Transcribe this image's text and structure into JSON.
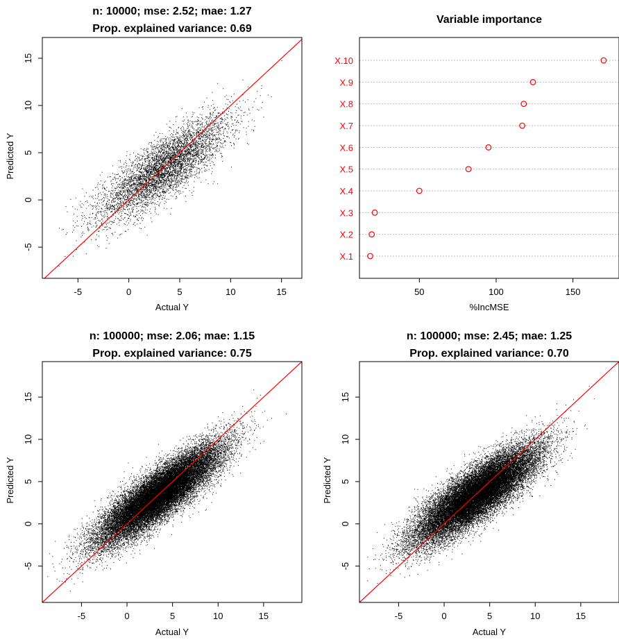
{
  "chart_data": [
    {
      "type": "scatter",
      "title": "n: 10000; mse: 2.52; mae: 1.27",
      "subtitle": "Prop. explained variance: 0.69",
      "xlabel": "Actual Y",
      "ylabel": "Predicted Y",
      "xlim": [
        -8.5,
        17
      ],
      "ylim": [
        -8.3,
        17.2
      ],
      "xticks": [
        -5,
        0,
        5,
        10,
        15
      ],
      "yticks": [
        -5,
        0,
        5,
        10,
        15
      ],
      "n": 10000,
      "mse": 2.52,
      "mae": 1.27,
      "explained_variance": 0.69,
      "point_cloud": {
        "mean_x": 3.4,
        "mean_y": 3.4,
        "sd_x": 3.2,
        "slope": 0.69,
        "resid_sd": 1.55,
        "count_drawn": 5500,
        "x_range": [
          -7,
          16
        ]
      },
      "reference_line": {
        "slope": 1,
        "intercept": 0,
        "color": "#ff0000"
      }
    },
    {
      "type": "dotplot",
      "title": "Variable importance",
      "xlabel": "%IncMSE",
      "xlim": [
        11,
        180
      ],
      "xticks": [
        50,
        100,
        150
      ],
      "categories": [
        "X.1",
        "X.2",
        "X.3",
        "X.4",
        "X.5",
        "X.6",
        "X.7",
        "X.8",
        "X.9",
        "X.10"
      ],
      "values": [
        18,
        19,
        21,
        50,
        82,
        95,
        117,
        118,
        124,
        170
      ],
      "marker_color": "#ff0000"
    },
    {
      "type": "scatter",
      "title": "n: 100000; mse: 2.06; mae: 1.15",
      "subtitle": "Prop. explained variance: 0.75",
      "xlabel": "Actual Y",
      "ylabel": "Predicted Y",
      "xlim": [
        -9.3,
        19.2
      ],
      "ylim": [
        -9.3,
        19.2
      ],
      "xticks": [
        -5,
        0,
        5,
        10,
        15
      ],
      "yticks": [
        -5,
        0,
        5,
        10,
        15
      ],
      "n": 100000,
      "mse": 2.06,
      "mae": 1.15,
      "explained_variance": 0.75,
      "point_cloud": {
        "mean_x": 3.5,
        "mean_y": 3.5,
        "sd_x": 3.3,
        "slope": 0.75,
        "resid_sd": 1.45,
        "count_drawn": 26000,
        "x_range": [
          -9,
          18
        ]
      },
      "reference_line": {
        "slope": 1,
        "intercept": 0,
        "color": "#ff0000"
      }
    },
    {
      "type": "scatter",
      "title": "n: 100000; mse: 2.45; mae: 1.25",
      "subtitle": "Prop. explained variance: 0.70",
      "xlabel": "Actual Y",
      "ylabel": "Predicted Y",
      "xlim": [
        -9.3,
        19.2
      ],
      "ylim": [
        -9.3,
        19.2
      ],
      "xticks": [
        -5,
        0,
        5,
        10,
        15
      ],
      "yticks": [
        -5,
        0,
        5,
        10,
        15
      ],
      "n": 100000,
      "mse": 2.45,
      "mae": 1.25,
      "explained_variance": 0.7,
      "point_cloud": {
        "mean_x": 3.5,
        "mean_y": 3.5,
        "sd_x": 3.3,
        "slope": 0.7,
        "resid_sd": 1.55,
        "count_drawn": 26000,
        "x_range": [
          -9,
          18
        ]
      },
      "reference_line": {
        "slope": 1,
        "intercept": 0,
        "color": "#ff0000"
      }
    }
  ]
}
